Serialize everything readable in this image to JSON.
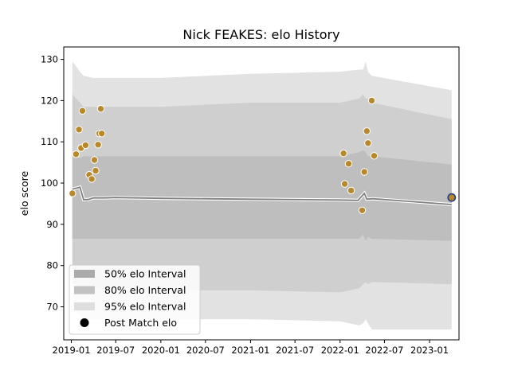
{
  "chart_data": {
    "type": "line",
    "title": "Nick FEAKES: elo History",
    "xlabel": "",
    "ylabel": "elo score",
    "xlim": [
      "2018-12-01",
      "2023-05-01"
    ],
    "ylim": [
      62,
      133
    ],
    "x_ticks": [
      "2019-01",
      "2019-07",
      "2020-01",
      "2020-07",
      "2021-01",
      "2021-07",
      "2022-01",
      "2022-07",
      "2023-01"
    ],
    "y_ticks": [
      70,
      80,
      90,
      100,
      110,
      120,
      130
    ],
    "grid": false,
    "legend_position": "lower-left",
    "legend": [
      {
        "label": "50% elo Interval",
        "kind": "band50"
      },
      {
        "label": "80% elo Interval",
        "kind": "band80"
      },
      {
        "label": "95% elo Interval",
        "kind": "band95"
      },
      {
        "label": "Post Match elo",
        "kind": "marker"
      }
    ],
    "series": [
      {
        "name": "elo",
        "x": [
          "2019-01-05",
          "2019-02-05",
          "2019-02-20",
          "2019-03-10",
          "2019-04-01",
          "2019-05-15",
          "2019-07-01",
          "2020-01-01",
          "2021-01-01",
          "2022-01-01",
          "2022-03-15",
          "2022-04-10",
          "2022-04-20",
          "2022-05-15",
          "2023-04-01"
        ],
        "y": [
          98.5,
          99,
          96,
          96,
          96.4,
          96.4,
          96.5,
          96.3,
          96.1,
          95.9,
          95.8,
          97.5,
          96.1,
          96.2,
          94.8
        ]
      }
    ],
    "bands": {
      "x": [
        "2019-01-05",
        "2019-02-05",
        "2019-02-20",
        "2019-04-01",
        "2019-05-15",
        "2020-01-01",
        "2021-01-01",
        "2022-01-01",
        "2022-03-20",
        "2022-04-05",
        "2022-04-15",
        "2022-04-25",
        "2022-05-10",
        "2023-04-01"
      ],
      "p95_low": [
        69,
        68,
        67,
        67,
        67,
        67,
        67,
        66.5,
        65.5,
        66,
        67,
        66,
        64.5,
        64.5
      ],
      "p95_high": [
        129.5,
        127,
        126,
        125.5,
        125.5,
        125.5,
        126.5,
        127,
        127.5,
        127.5,
        129.5,
        127,
        126,
        122.5
      ],
      "p80_low": [
        76,
        75,
        74.5,
        74.5,
        74.5,
        74,
        74,
        73.5,
        74.5,
        75.5,
        76,
        75.5,
        76,
        75.5
      ],
      "p80_high": [
        121.5,
        119.5,
        118.5,
        118.5,
        118.5,
        118.5,
        119.5,
        119.5,
        120.5,
        121.5,
        120.5,
        120.5,
        119.5,
        115.5
      ],
      "p50_low": [
        86.5,
        86.5,
        86.5,
        86.5,
        86.5,
        86.5,
        86.5,
        86.5,
        86.5,
        87.5,
        86,
        87,
        86.5,
        86
      ],
      "p50_high": [
        107.5,
        106,
        106.5,
        106.5,
        106.5,
        106.5,
        106.5,
        106.5,
        107.5,
        108,
        107.5,
        106.5,
        106.5,
        104.5
      ]
    },
    "matches": {
      "x": [
        "2019-01-05",
        "2019-01-20",
        "2019-02-01",
        "2019-02-10",
        "2019-02-15",
        "2019-02-28",
        "2019-03-15",
        "2019-03-25",
        "2019-04-05",
        "2019-04-10",
        "2019-04-20",
        "2019-04-25",
        "2019-05-01",
        "2019-05-05",
        "2022-01-15",
        "2022-01-20",
        "2022-02-05",
        "2022-02-15",
        "2022-04-01",
        "2022-04-10",
        "2022-04-20",
        "2022-04-25",
        "2022-05-10",
        "2022-05-20"
      ],
      "y": [
        97.5,
        107,
        113,
        108.5,
        117.5,
        109.2,
        102,
        101,
        105.6,
        103,
        109.3,
        112,
        118,
        112,
        107.2,
        99.8,
        104.7,
        98.2,
        93.4,
        102.7,
        112.6,
        109.7,
        120,
        106.6
      ]
    },
    "last_match": {
      "x": "2023-04-01",
      "y": 96.5
    },
    "colors": {
      "band95": "#e2e2e2",
      "band80": "#cfcfcf",
      "band50": "#bebebe",
      "elo_line": "#808080",
      "match_marker": "#b8892b",
      "last_marker": "#1f3d8a"
    }
  }
}
